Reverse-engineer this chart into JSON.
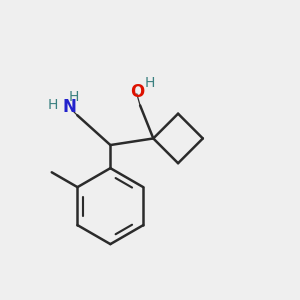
{
  "background_color": "#efefef",
  "bond_color": "#2b2b2b",
  "N_color": "#2222cc",
  "O_color": "#dd1100",
  "H_color": "#3a8080",
  "bond_lw": 1.8,
  "figsize": [
    3.0,
    3.0
  ],
  "dpi": 100,
  "xlim": [
    0.05,
    0.95
  ],
  "ylim": [
    0.05,
    0.95
  ]
}
